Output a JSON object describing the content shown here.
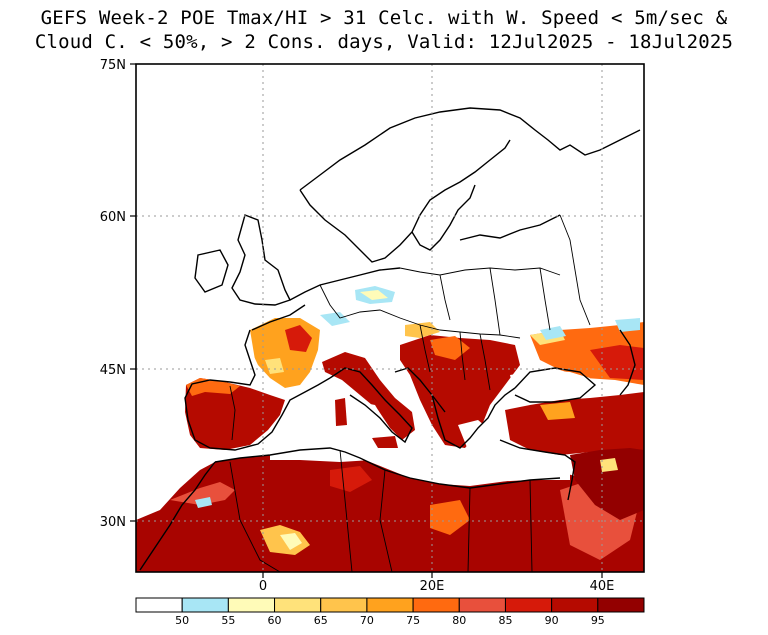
{
  "title": {
    "line1": "GEFS Week-2 POE Tmax/HI > 31 Celc. with W. Speed < 5m/sec &",
    "line2": "Cloud C. < 50%, > 2 Cons. days, Valid: 12Jul2025 - 18Jul2025"
  },
  "map": {
    "region": "Europe / Mediterranean / North Africa",
    "lat_labels": [
      "75N",
      "60N",
      "45N",
      "30N"
    ],
    "lon_labels": [
      "0",
      "20E",
      "40E"
    ],
    "lat_values": [
      75,
      60,
      45,
      30
    ],
    "lon_values": [
      0,
      20,
      40
    ],
    "extent": {
      "lon_min": -15,
      "lon_max": 45,
      "lat_min": 25,
      "lat_max": 75
    },
    "gridlines": "dotted"
  },
  "colorbar": {
    "labels": [
      "50",
      "55",
      "60",
      "65",
      "70",
      "75",
      "80",
      "85",
      "90",
      "95"
    ],
    "colors": [
      "#ffffff",
      "#a8e6f5",
      "#fffbb8",
      "#ffe27a",
      "#ffc44c",
      "#ffa21e",
      "#ff6a10",
      "#e8503c",
      "#d61a0a",
      "#b50a00",
      "#930000"
    ]
  },
  "palette": {
    "land_outline": "#000000",
    "grid": "#9a9a9a"
  }
}
